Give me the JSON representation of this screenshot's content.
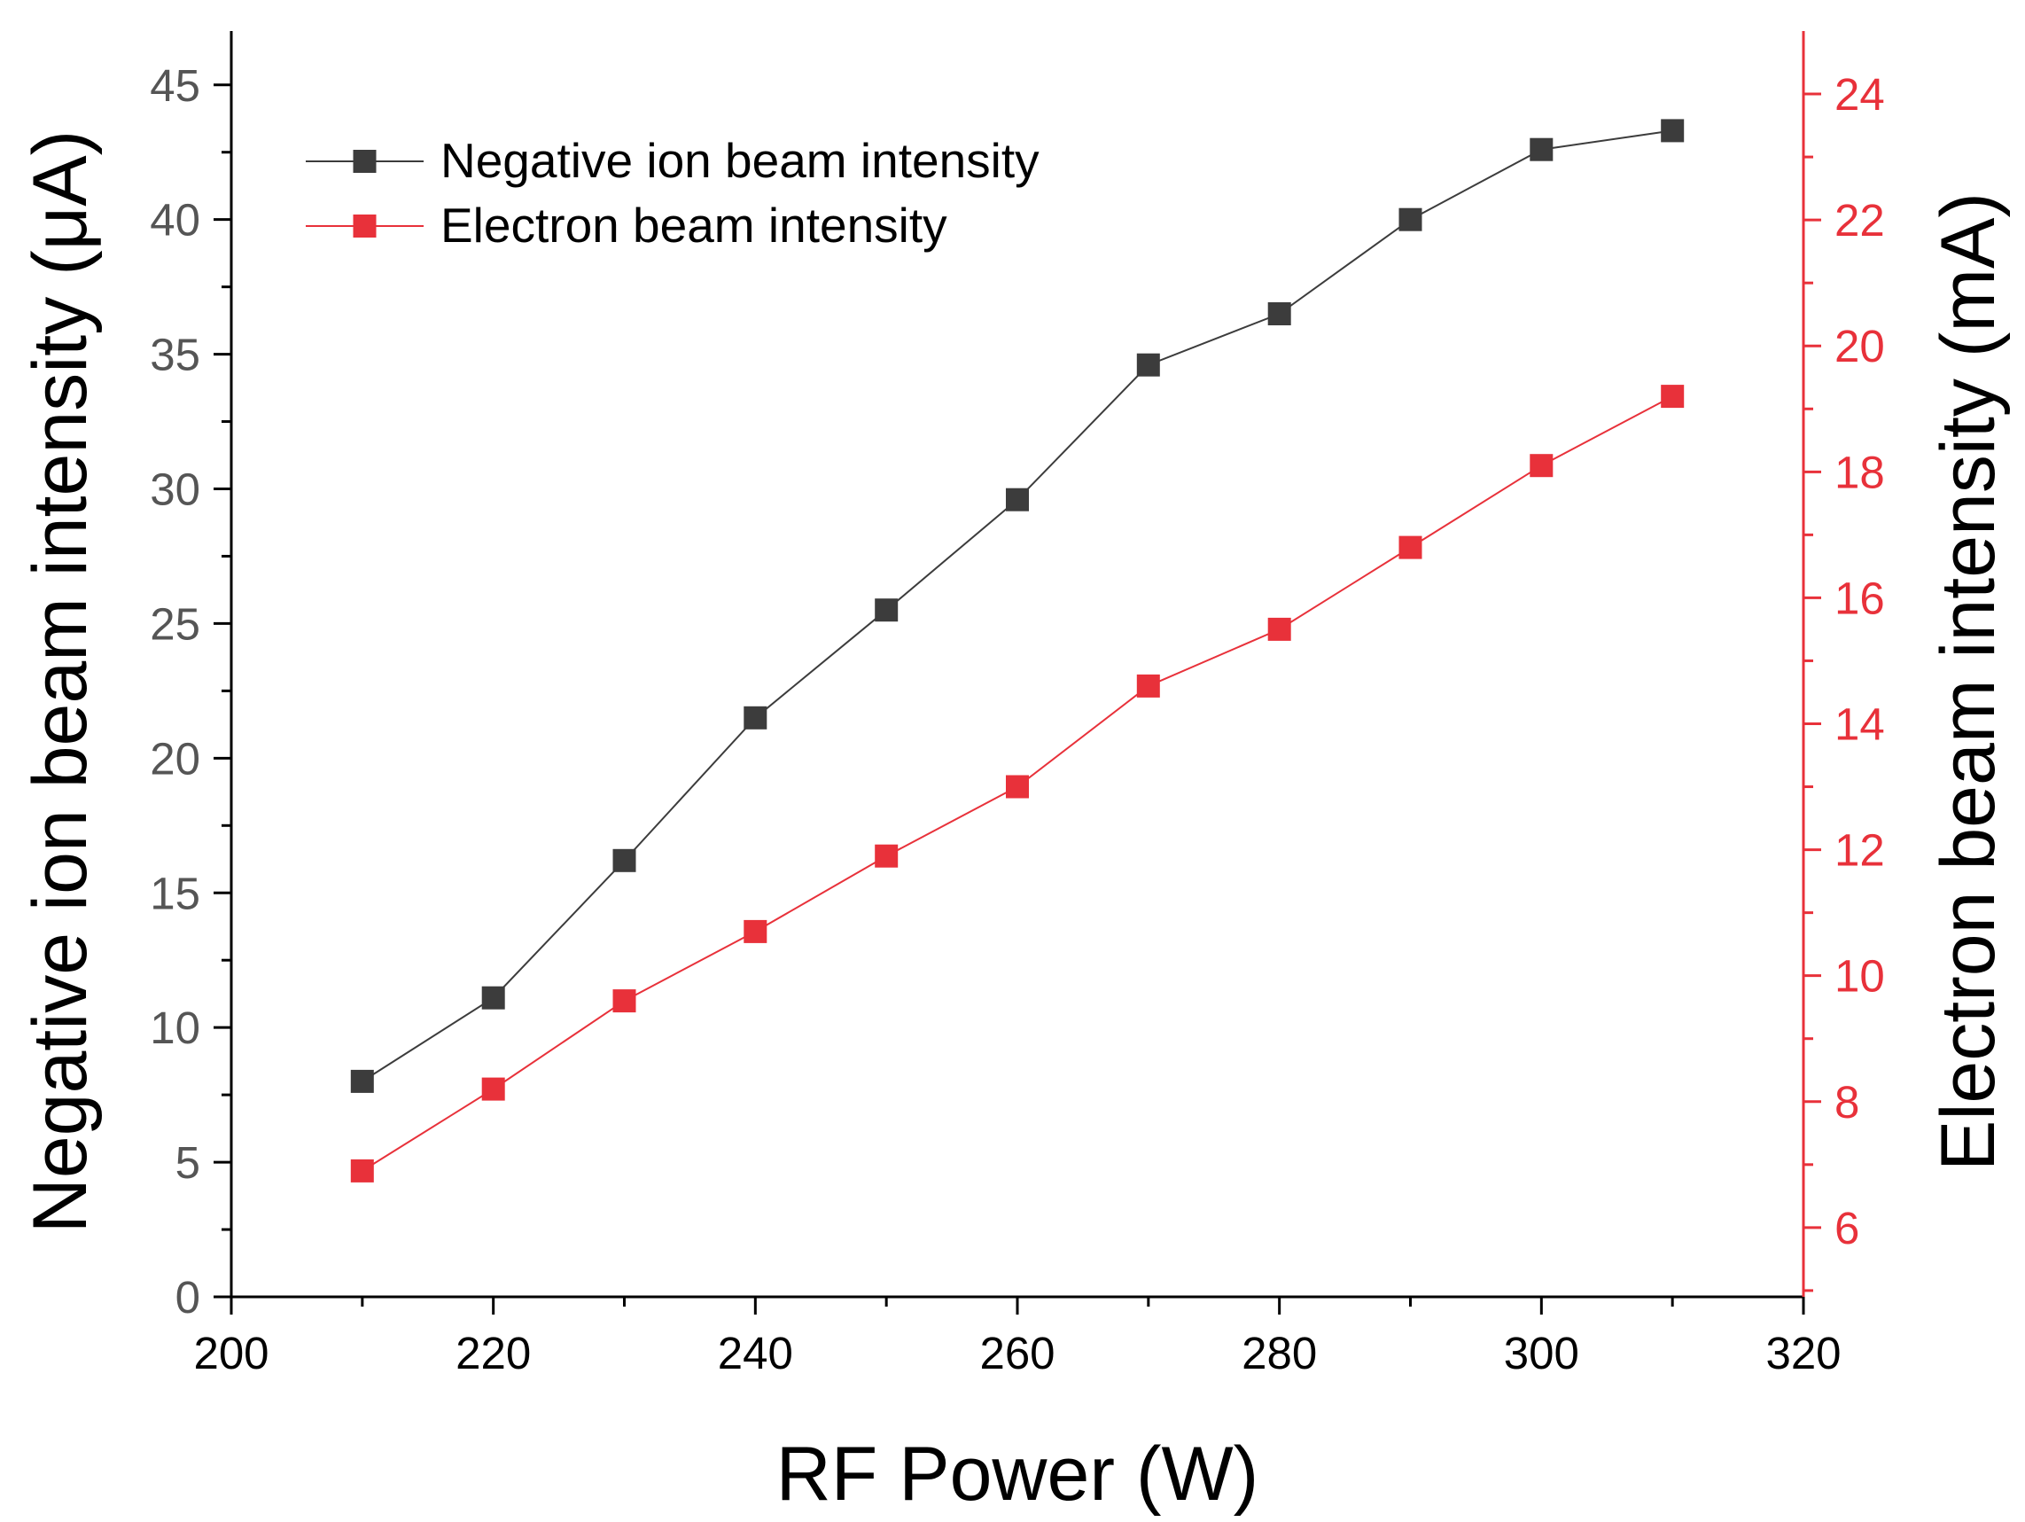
{
  "chart_data": {
    "type": "line",
    "title": "",
    "xlabel": "RF Power (W)",
    "ylabel_left": "Negative ion beam intensity (μA)",
    "ylabel_right": "Electron beam intensity (mA)",
    "xlim": [
      200,
      320
    ],
    "ylim_left": [
      0,
      47
    ],
    "ylim_right": [
      4.9,
      25.0
    ],
    "x_ticks": [
      200,
      220,
      240,
      260,
      280,
      300,
      320
    ],
    "y_left_ticks": [
      0,
      5,
      10,
      15,
      20,
      25,
      30,
      35,
      40,
      45
    ],
    "y_right_ticks": [
      6,
      8,
      10,
      12,
      14,
      16,
      18,
      20,
      22,
      24
    ],
    "grid": false,
    "legend_position": "top-left",
    "x": [
      210,
      220,
      230,
      240,
      250,
      260,
      270,
      280,
      290,
      300,
      310
    ],
    "series": [
      {
        "name": "Negative ion beam intensity",
        "axis": "left",
        "color": "#3c3c3c",
        "values": [
          8.0,
          11.1,
          16.2,
          21.5,
          25.5,
          29.6,
          34.6,
          36.5,
          40.0,
          42.6,
          43.3
        ]
      },
      {
        "name": "Electron beam intensity",
        "axis": "right",
        "color": "#e8313a",
        "values": [
          6.9,
          8.2,
          9.6,
          10.7,
          11.9,
          13.0,
          14.6,
          15.5,
          16.8,
          18.1,
          19.2
        ]
      }
    ]
  },
  "colors": {
    "left_axis": "#000000",
    "left_tick_text": "#555555",
    "right_axis": "#e8313a",
    "background": "#ffffff"
  }
}
